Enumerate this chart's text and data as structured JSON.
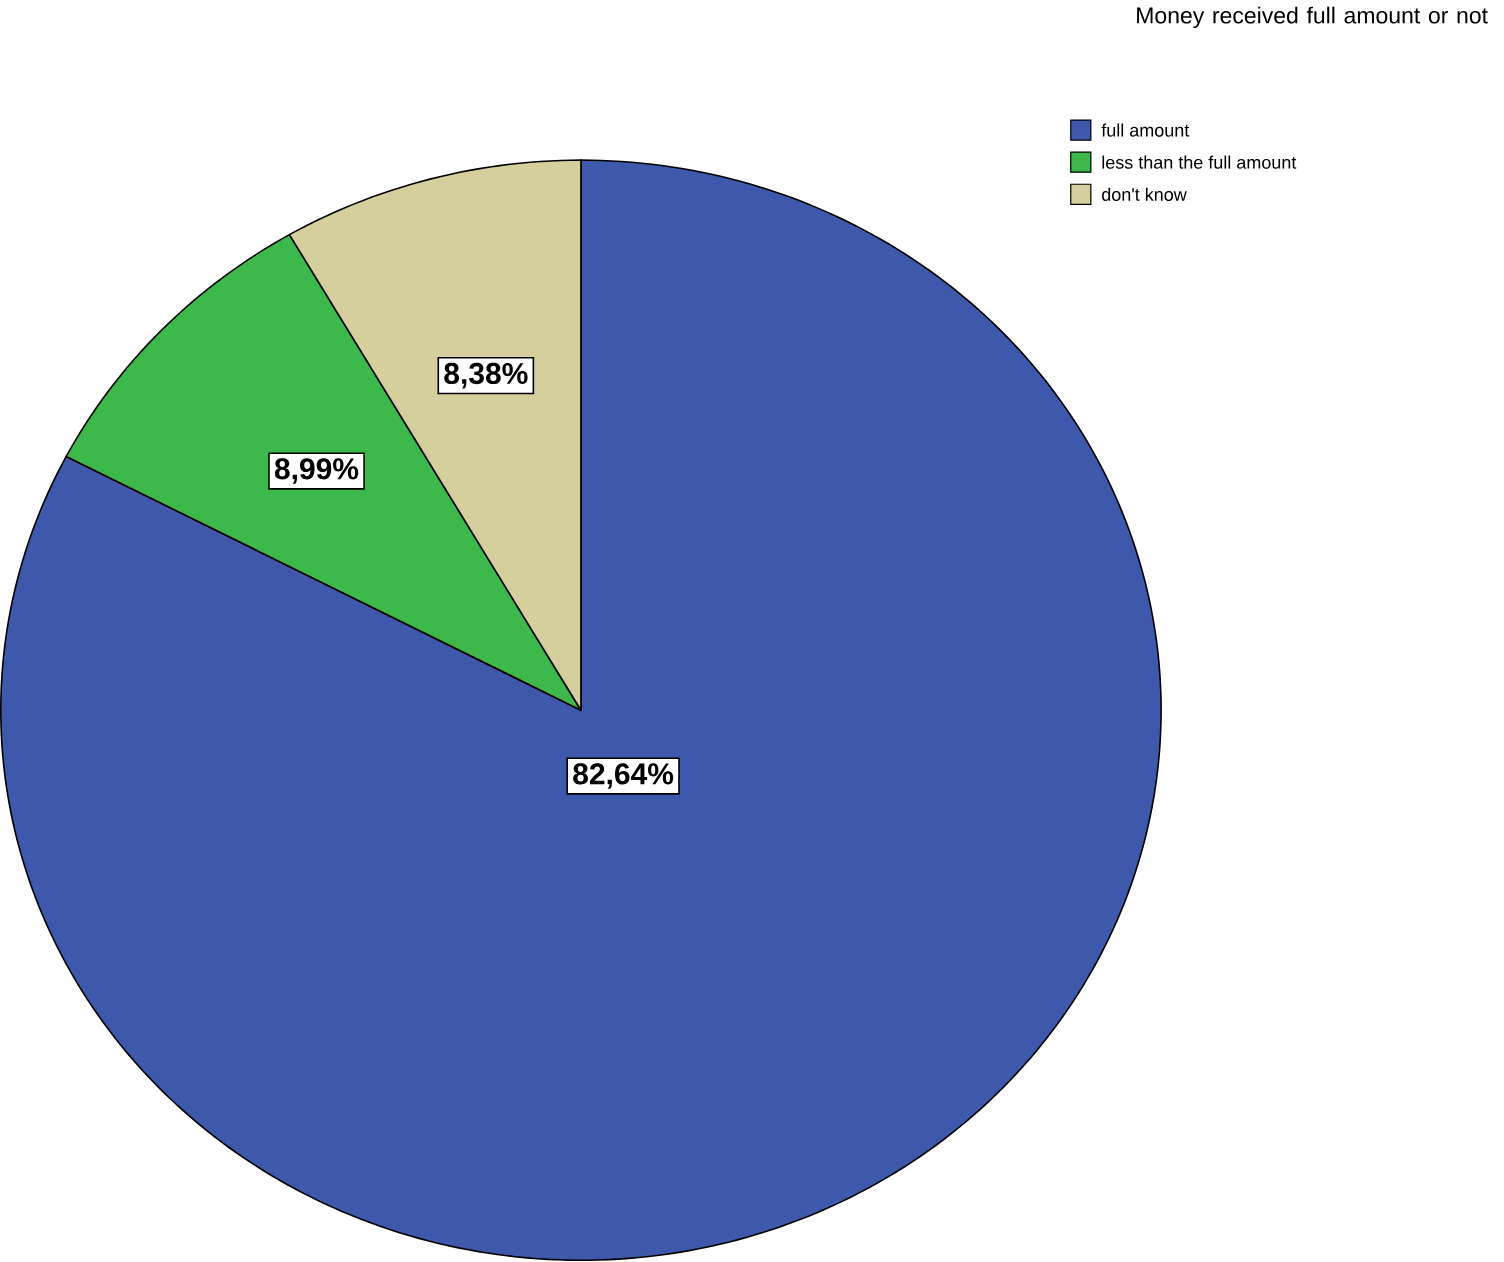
{
  "chart_data": {
    "type": "pie",
    "legend_title": "Money received full amount or not",
    "categories": [
      "full amount",
      "less than the full amount",
      "don't know"
    ],
    "values": [
      82.64,
      8.99,
      8.38
    ],
    "colors": [
      "#3e58ac",
      "#3db84a",
      "#d4cf9d"
    ],
    "value_labels": [
      "82,64%",
      "8,99%",
      "8,38%"
    ],
    "legend": "top right"
  }
}
